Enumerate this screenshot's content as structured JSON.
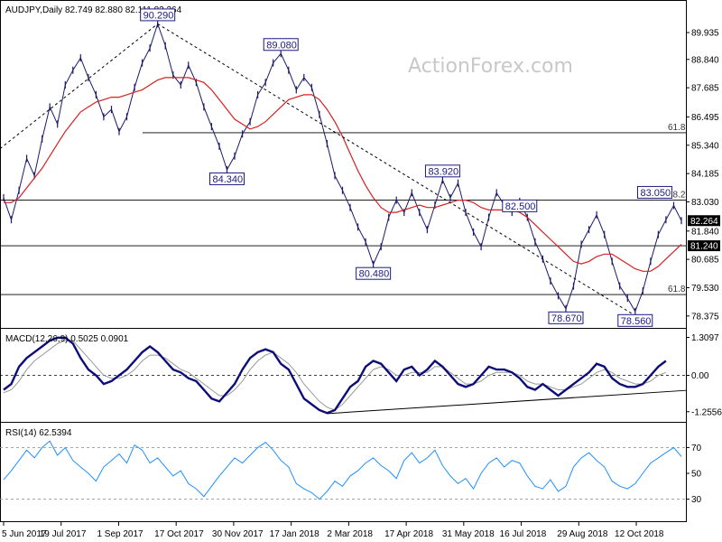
{
  "header": {
    "symbol": "AUDJPY",
    "timeframe": "Daily",
    "ohlc": "82.749 82.880 82.111 82.264"
  },
  "watermark": "ActionForex.com",
  "chart_data": [
    {
      "type": "line",
      "role": "price",
      "y_ticks": [
        "89.935",
        "88.840",
        "87.685",
        "86.495",
        "85.340",
        "84.185",
        "83.030",
        "81.840",
        "80.685",
        "79.530",
        "78.375"
      ],
      "ylim": [
        78.0,
        90.6
      ],
      "x_ticks": [
        "5 Jun 2017",
        "19 Jul 2017",
        "1 Sep 2017",
        "17 Oct 2017",
        "30 Nov 2017",
        "17 Jan 2018",
        "2 Mar 2018",
        "17 Apr 2018",
        "31 May 2018",
        "16 Jul 2018",
        "29 Aug 2018",
        "12 Oct 2018"
      ],
      "series": [
        {
          "values": [
            83.2,
            82.3,
            83.5,
            84.8,
            84.1,
            85.6,
            86.9,
            86.2,
            87.8,
            88.4,
            88.9,
            88.1,
            87.4,
            86.5,
            86.8,
            85.9,
            86.5,
            87.7,
            88.7,
            89.3,
            90.29,
            89.4,
            88.2,
            87.8,
            88.6,
            87.9,
            86.9,
            86.1,
            85.3,
            84.34,
            84.9,
            85.8,
            86.3,
            87.4,
            87.9,
            88.7,
            89.08,
            88.4,
            87.6,
            88.1,
            87.7,
            86.6,
            85.4,
            84.1,
            83.5,
            82.8,
            82.0,
            81.4,
            80.48,
            81.2,
            82.4,
            83.1,
            82.6,
            83.4,
            82.6,
            81.9,
            82.9,
            83.92,
            83.2,
            83.8,
            82.6,
            81.8,
            81.2,
            82.4,
            83.4,
            82.9,
            82.6,
            83.05,
            82.4,
            81.4,
            80.7,
            79.8,
            79.2,
            78.67,
            79.6,
            81.3,
            81.9,
            82.5,
            81.7,
            80.6,
            79.6,
            79.1,
            78.56,
            79.4,
            80.6,
            81.7,
            82.3,
            82.88,
            82.264
          ]
        },
        {
          "name": "",
          "values": [
            83.0,
            83.0,
            83.2,
            83.6,
            84.0,
            84.4,
            84.9,
            85.4,
            85.9,
            86.3,
            86.7,
            86.9,
            87.1,
            87.2,
            87.3,
            87.3,
            87.4,
            87.5,
            87.6,
            87.8,
            88.0,
            88.1,
            88.1,
            88.1,
            88.1,
            88.0,
            87.9,
            87.6,
            87.2,
            86.8,
            86.4,
            86.2,
            86.0,
            86.1,
            86.3,
            86.6,
            86.9,
            87.2,
            87.3,
            87.4,
            87.4,
            87.2,
            86.8,
            86.3,
            85.7,
            85.0,
            84.3,
            83.7,
            83.2,
            82.8,
            82.6,
            82.6,
            82.7,
            82.8,
            82.9,
            82.8,
            82.8,
            82.9,
            83.0,
            83.1,
            83.1,
            83.0,
            82.8,
            82.7,
            82.7,
            82.7,
            82.7,
            82.6,
            82.4,
            82.1,
            81.8,
            81.5,
            81.2,
            80.9,
            80.6,
            80.5,
            80.6,
            80.8,
            80.9,
            80.9,
            80.7,
            80.5,
            80.3,
            80.2,
            80.2,
            80.4,
            80.7,
            81.0,
            81.3
          ]
        }
      ],
      "levels": [
        {
          "value": 85.85,
          "label": "61.8"
        },
        {
          "value": 83.1,
          "label": "38.2"
        },
        {
          "value": 81.24,
          "label": "81.240"
        },
        {
          "value": 79.25,
          "label": "61.8"
        }
      ],
      "current": "82.264",
      "annotations": [
        "90.290",
        "89.080",
        "84.340",
        "80.480",
        "83.920",
        "82.500",
        "83.050",
        "78.670",
        "78.560"
      ]
    },
    {
      "type": "line",
      "role": "macd",
      "title": "MACD(12,26,9) 0.5025 0.0901",
      "y_ticks": [
        "1.3097",
        "0.00",
        "-1.2556"
      ],
      "ylim": [
        -1.45,
        1.42
      ],
      "series": [
        {
          "values": [
            -0.5,
            -0.3,
            0.3,
            0.6,
            0.8,
            1.0,
            1.2,
            1.3,
            1.3,
            1.1,
            0.6,
            0.2,
            0.0,
            -0.3,
            -0.2,
            0.0,
            0.2,
            0.5,
            0.8,
            1.0,
            0.8,
            0.5,
            0.2,
            0.1,
            -0.1,
            -0.2,
            -0.5,
            -0.8,
            -0.9,
            -0.6,
            -0.3,
            0.2,
            0.6,
            0.8,
            0.9,
            0.8,
            0.4,
            0.2,
            -0.3,
            -0.8,
            -1.0,
            -1.2,
            -1.3,
            -1.2,
            -0.8,
            -0.4,
            -0.2,
            0.3,
            0.5,
            0.4,
            0.1,
            -0.2,
            0.2,
            0.3,
            0.0,
            0.2,
            0.5,
            0.3,
            0.0,
            -0.3,
            -0.4,
            -0.3,
            0.0,
            0.3,
            0.2,
            0.2,
            0.1,
            -0.1,
            -0.4,
            -0.5,
            -0.3,
            -0.5,
            -0.7,
            -0.5,
            -0.3,
            -0.1,
            0.1,
            0.4,
            0.3,
            -0.1,
            -0.3,
            -0.4,
            -0.4,
            -0.3,
            0.0,
            0.3,
            0.5
          ]
        },
        {
          "values": [
            -0.6,
            -0.5,
            -0.2,
            0.2,
            0.5,
            0.7,
            0.9,
            1.1,
            1.2,
            1.2,
            0.9,
            0.6,
            0.3,
            0.0,
            -0.1,
            -0.1,
            0.0,
            0.2,
            0.5,
            0.7,
            0.7,
            0.6,
            0.4,
            0.2,
            0.1,
            -0.1,
            -0.3,
            -0.5,
            -0.7,
            -0.7,
            -0.5,
            -0.2,
            0.2,
            0.5,
            0.7,
            0.8,
            0.6,
            0.4,
            0.1,
            -0.3,
            -0.6,
            -0.9,
            -1.1,
            -1.2,
            -1.0,
            -0.7,
            -0.4,
            -0.1,
            0.2,
            0.3,
            0.2,
            0.0,
            0.0,
            0.1,
            0.1,
            0.1,
            0.3,
            0.3,
            0.1,
            -0.1,
            -0.3,
            -0.3,
            -0.2,
            0.0,
            0.1,
            0.1,
            0.1,
            0.0,
            -0.2,
            -0.3,
            -0.3,
            -0.4,
            -0.5,
            -0.5,
            -0.4,
            -0.3,
            -0.1,
            0.1,
            0.2,
            0.1,
            -0.1,
            -0.2,
            -0.3,
            -0.3,
            -0.2,
            0.0,
            0.1
          ]
        }
      ]
    },
    {
      "type": "line",
      "role": "rsi",
      "title": "RSI(14) 62.5394",
      "y_ticks": [
        "70",
        "50",
        "30"
      ],
      "ylim": [
        15,
        85
      ],
      "series": [
        {
          "values": [
            45,
            52,
            60,
            68,
            62,
            70,
            75,
            64,
            70,
            60,
            55,
            50,
            44,
            55,
            60,
            65,
            58,
            72,
            68,
            58,
            62,
            55,
            48,
            52,
            42,
            38,
            32,
            40,
            48,
            55,
            62,
            58,
            64,
            70,
            74,
            68,
            60,
            55,
            42,
            38,
            35,
            30,
            36,
            44,
            40,
            48,
            52,
            58,
            62,
            56,
            52,
            46,
            60,
            66,
            58,
            62,
            68,
            56,
            48,
            42,
            46,
            38,
            50,
            58,
            62,
            55,
            60,
            58,
            48,
            40,
            38,
            45,
            36,
            40,
            55,
            62,
            66,
            60,
            55,
            44,
            40,
            38,
            42,
            50,
            58,
            62,
            66,
            70,
            63
          ]
        }
      ],
      "levels": [
        70,
        30
      ]
    }
  ]
}
